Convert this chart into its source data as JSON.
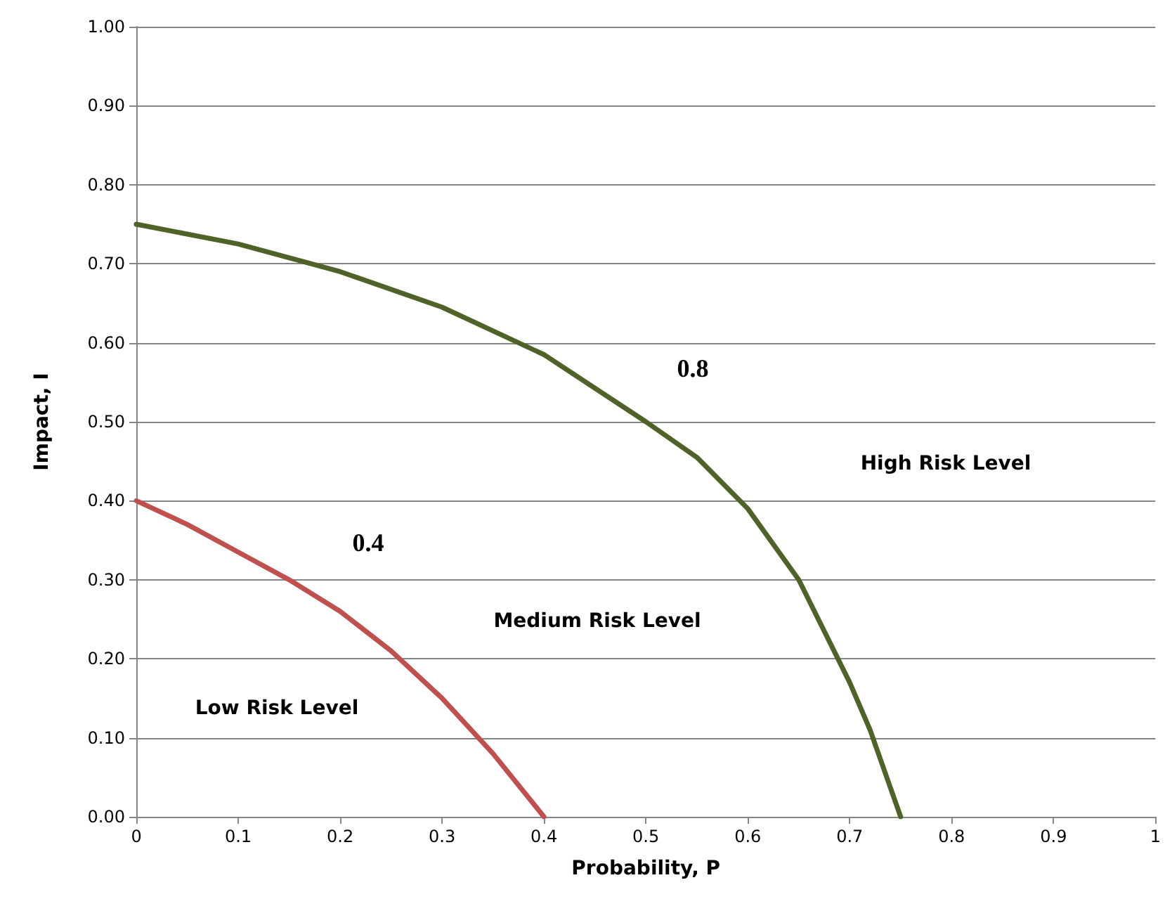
{
  "chart_data": {
    "type": "line",
    "xlabel": "Probability, P",
    "ylabel": "Impact, I",
    "xlim": [
      0,
      1
    ],
    "xticks": [
      0,
      0.1,
      0.2,
      0.3,
      0.4,
      0.5,
      0.6,
      0.7,
      0.8,
      0.9,
      1
    ],
    "ylim": [
      0,
      1
    ],
    "yticks": [
      {
        "value": 0,
        "label": "0.00"
      },
      {
        "value": 0.1,
        "label": "0.10"
      },
      {
        "value": 0.2,
        "label": "0.20"
      },
      {
        "value": 0.3,
        "label": "0.30"
      },
      {
        "value": 0.4,
        "label": "0.40"
      },
      {
        "value": 0.5,
        "label": "0.50"
      },
      {
        "value": 0.6,
        "label": "0.60"
      },
      {
        "value": 0.7,
        "label": "0.70"
      },
      {
        "value": 0.8,
        "label": "0.80"
      },
      {
        "value": 0.9,
        "label": "0.90"
      },
      {
        "value": 1,
        "label": "1.00"
      }
    ],
    "grid": "y",
    "marker": "none",
    "line_style": "solid",
    "series": [
      {
        "color": "#c0504d",
        "x": [
          0,
          0.05,
          0.1,
          0.15,
          0.2,
          0.25,
          0.3,
          0.35,
          0.4
        ],
        "values": [
          0.4,
          0.37,
          0.335,
          0.3,
          0.26,
          0.21,
          0.15,
          0.08,
          0
        ]
      },
      {
        "color": "#4f6228",
        "x": [
          0,
          0.1,
          0.2,
          0.3,
          0.4,
          0.5,
          0.55,
          0.6,
          0.65,
          0.7,
          0.72,
          0.75
        ],
        "values": [
          0.75,
          0.725,
          0.69,
          0.645,
          0.585,
          0.5,
          0.455,
          0.39,
          0.3,
          0.17,
          0.11,
          0
        ]
      }
    ],
    "annotations": [
      "0.4",
      "0.8",
      "Low Risk Level",
      "Medium Risk Level",
      "High Risk Level"
    ]
  }
}
